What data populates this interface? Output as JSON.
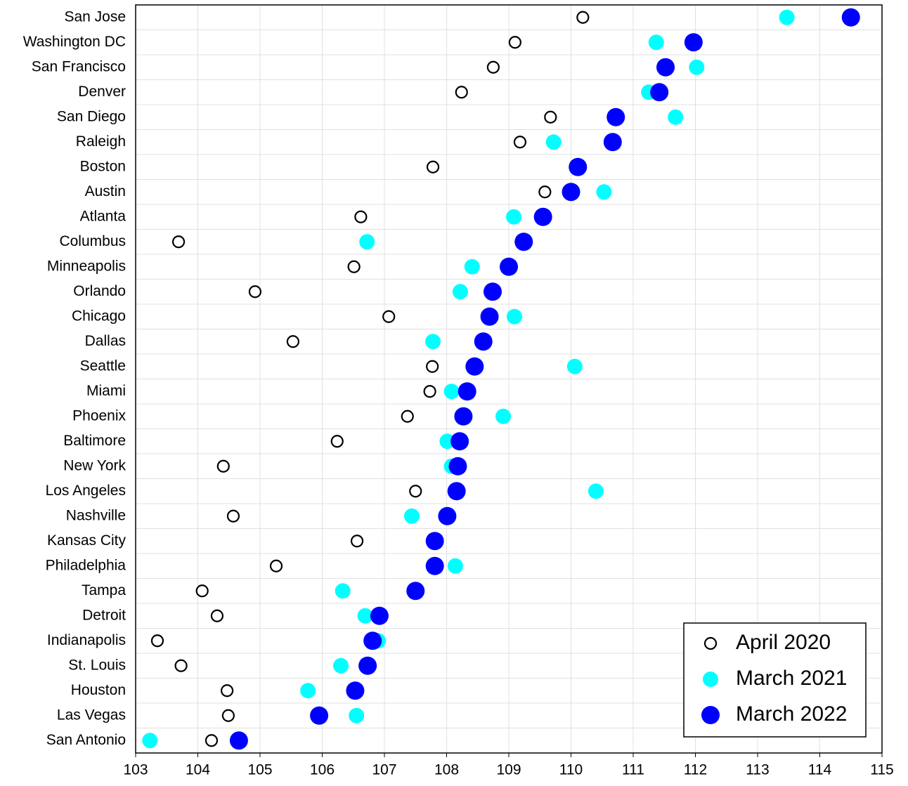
{
  "chart_data": {
    "type": "scatter",
    "categories": [
      "San Jose",
      "Washington DC",
      "San Francisco",
      "Denver",
      "San Diego",
      "Raleigh",
      "Boston",
      "Austin",
      "Atlanta",
      "Columbus",
      "Minneapolis",
      "Orlando",
      "Chicago",
      "Dallas",
      "Seattle",
      "Miami",
      "Phoenix",
      "Baltimore",
      "New York",
      "Los Angeles",
      "Nashville",
      "Kansas City",
      "Philadelphia",
      "Tampa",
      "Detroit",
      "Indianapolis",
      "St. Louis",
      "Houston",
      "Las Vegas",
      "San Antonio"
    ],
    "series": [
      {
        "name": "April 2020",
        "color": "#000000",
        "marker": "hollow",
        "values": [
          110.19,
          109.1,
          108.75,
          108.24,
          109.67,
          109.18,
          107.78,
          109.58,
          106.62,
          103.69,
          106.51,
          104.92,
          107.07,
          105.53,
          107.77,
          107.73,
          107.37,
          106.24,
          104.41,
          107.5,
          104.57,
          106.56,
          105.26,
          104.07,
          104.31,
          103.35,
          103.73,
          104.47,
          104.49,
          104.22
        ]
      },
      {
        "name": "March 2021",
        "color": "#00ffff",
        "marker": "filled",
        "values": [
          113.47,
          111.37,
          112.02,
          111.25,
          111.68,
          109.72,
          110.1,
          110.53,
          109.08,
          106.72,
          108.41,
          108.22,
          109.09,
          107.78,
          110.06,
          108.08,
          108.91,
          108.01,
          108.08,
          110.4,
          107.44,
          107.8,
          108.14,
          106.33,
          106.69,
          106.9,
          106.3,
          105.77,
          106.55,
          103.23
        ]
      },
      {
        "name": "March 2022",
        "color": "#0000ff",
        "marker": "filled",
        "values": [
          114.5,
          111.97,
          111.52,
          111.42,
          110.72,
          110.67,
          110.11,
          110.0,
          109.55,
          109.24,
          109.0,
          108.74,
          108.69,
          108.59,
          108.45,
          108.33,
          108.27,
          108.21,
          108.18,
          108.16,
          108.01,
          107.81,
          107.81,
          107.5,
          106.92,
          106.81,
          106.73,
          106.53,
          105.95,
          104.66
        ]
      }
    ],
    "xlim": [
      103,
      115
    ],
    "xticks": [
      103,
      104,
      105,
      106,
      107,
      108,
      109,
      110,
      111,
      112,
      113,
      114,
      115
    ],
    "grid": true,
    "legend": "lower right"
  }
}
